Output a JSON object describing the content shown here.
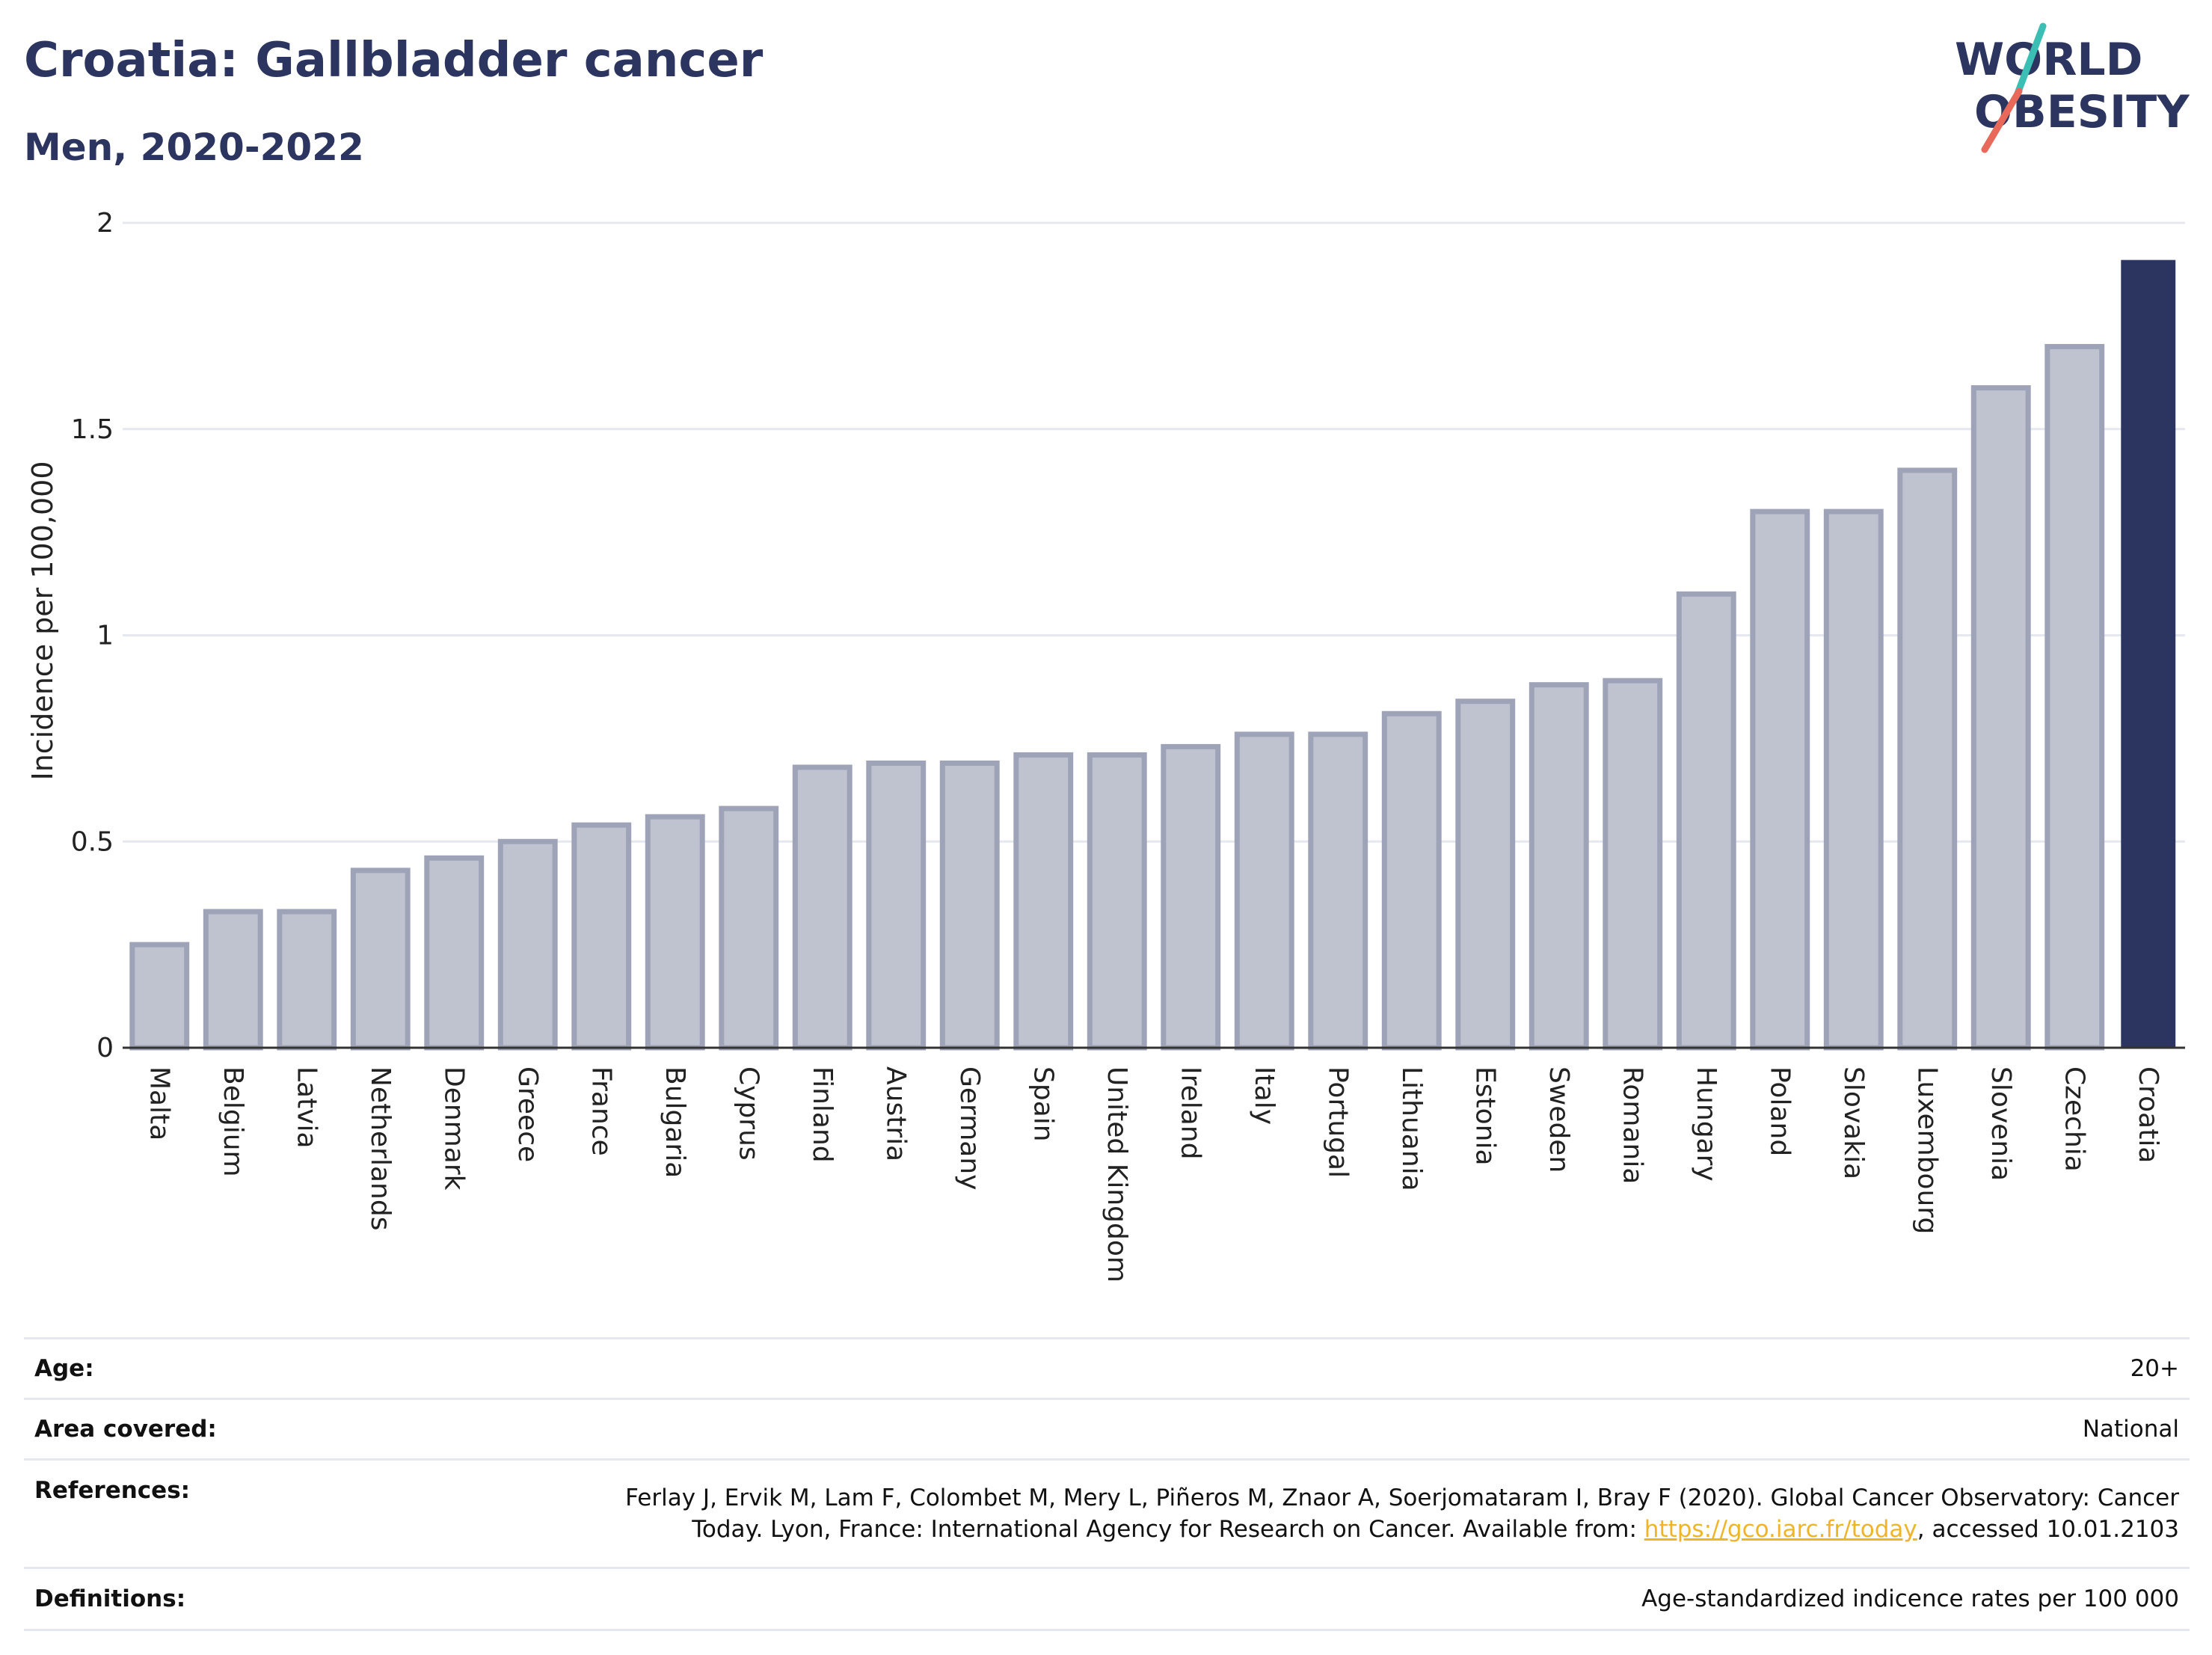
{
  "title": "Croatia: Gallbladder cancer",
  "subtitle": "Men, 2020-2022",
  "logo": {
    "line1": "WORLD",
    "line2": "OBESITY",
    "accent_teal": "#3bbfb5",
    "accent_coral": "#e8685a"
  },
  "colors": {
    "highlight": "#2b3560",
    "bar_fill": "#bfc2cf",
    "bar_stroke": "#9ea3b8",
    "title": "#2b3560",
    "link": "#f0b429"
  },
  "chart_data": {
    "type": "bar",
    "title": "Croatia: Gallbladder cancer",
    "subtitle": "Men, 2020-2022",
    "ylabel": "Incidence per 100,000",
    "xlabel": "",
    "ylim": [
      0,
      2
    ],
    "yticks": [
      0,
      0.5,
      1,
      1.5,
      2
    ],
    "ytick_labels": [
      "0",
      "0.5",
      "1",
      "1.5",
      "2"
    ],
    "grid": true,
    "highlight": "Croatia",
    "categories": [
      "Malta",
      "Belgium",
      "Latvia",
      "Netherlands",
      "Denmark",
      "Greece",
      "France",
      "Bulgaria",
      "Cyprus",
      "Finland",
      "Austria",
      "Germany",
      "Spain",
      "United Kingdom",
      "Ireland",
      "Italy",
      "Portugal",
      "Lithuania",
      "Estonia",
      "Sweden",
      "Romania",
      "Hungary",
      "Poland",
      "Slovakia",
      "Luxembourg",
      "Slovenia",
      "Czechia",
      "Croatia"
    ],
    "values": [
      0.25,
      0.33,
      0.33,
      0.43,
      0.46,
      0.5,
      0.54,
      0.56,
      0.58,
      0.68,
      0.69,
      0.69,
      0.71,
      0.71,
      0.73,
      0.76,
      0.76,
      0.81,
      0.84,
      0.88,
      0.89,
      1.1,
      1.3,
      1.3,
      1.4,
      1.6,
      1.7,
      1.91
    ]
  },
  "info": {
    "age_label": "Age:",
    "age_value": "20+",
    "area_label": "Area covered:",
    "area_value": "National",
    "references_label": "References:",
    "references_line1": "Ferlay J, Ervik M, Lam F, Colombet M, Mery L, Piñeros M, Znaor A, Soerjomataram I, Bray F (2020). Global Cancer Observatory: Cancer",
    "references_line2_before": "Today. Lyon, France: International Agency for Research on Cancer. Available from: ",
    "references_link": "https://gco.iarc.fr/today",
    "references_line2_after": ", accessed 10.01.2103",
    "definitions_label": "Definitions:",
    "definitions_value": "Age-standardized indicence rates per 100 000"
  }
}
